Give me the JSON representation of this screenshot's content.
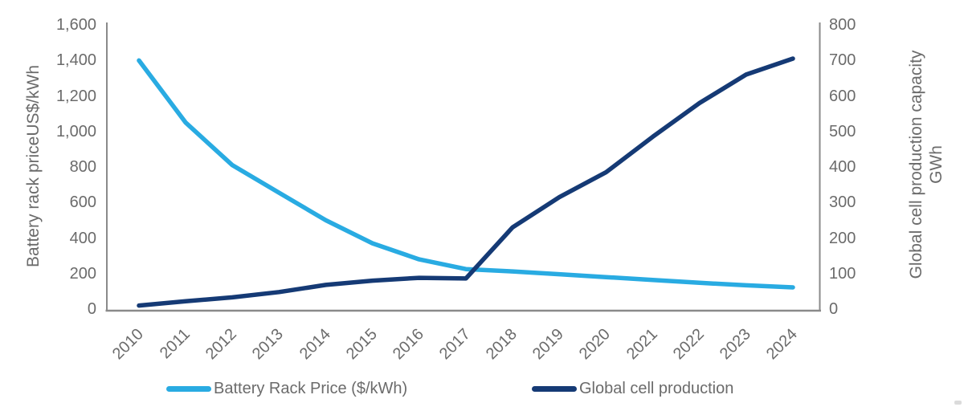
{
  "chart_data": {
    "type": "line",
    "x": [
      "2010",
      "2011",
      "2012",
      "2013",
      "2014",
      "2015",
      "2016",
      "2017",
      "2018",
      "2019",
      "2020",
      "2021",
      "2022",
      "2023",
      "2024"
    ],
    "x_axis": {
      "label_rotation_deg": 45
    },
    "left_axis": {
      "title": "Battery rack priceUS$/kWh",
      "min": 0,
      "max": 1600,
      "tick_step": 200,
      "tick_labels": [
        "0",
        "200",
        "400",
        "600",
        "800",
        "1,000",
        "1,200",
        "1,400",
        "1,600"
      ]
    },
    "right_axis": {
      "title": "Global cell production capacity",
      "unit": "GWh",
      "min": 0,
      "max": 800,
      "tick_step": 100,
      "tick_labels": [
        "0",
        "100",
        "200",
        "300",
        "400",
        "500",
        "600",
        "700",
        "800"
      ]
    },
    "grid": false,
    "legend_position": "bottom",
    "series": [
      {
        "name": "Battery Rack Price ($/kWh)",
        "axis": "left",
        "color": "#29abe2",
        "values": [
          1400,
          1050,
          810,
          655,
          500,
          370,
          280,
          225,
          212,
          196,
          180,
          164,
          148,
          134,
          122
        ]
      },
      {
        "name": "Global cell production",
        "axis": "right",
        "color": "#153a75",
        "values": [
          10,
          22,
          33,
          48,
          68,
          80,
          88,
          86,
          230,
          315,
          385,
          485,
          580,
          660,
          705
        ]
      }
    ]
  },
  "colors": {
    "background": "#ffffff",
    "text_gray": "#6b6b6b",
    "axis_line_gray": "#8a8a8a",
    "battery_rack_price_line": "#29abe2",
    "global_cell_production_line": "#153a75"
  }
}
